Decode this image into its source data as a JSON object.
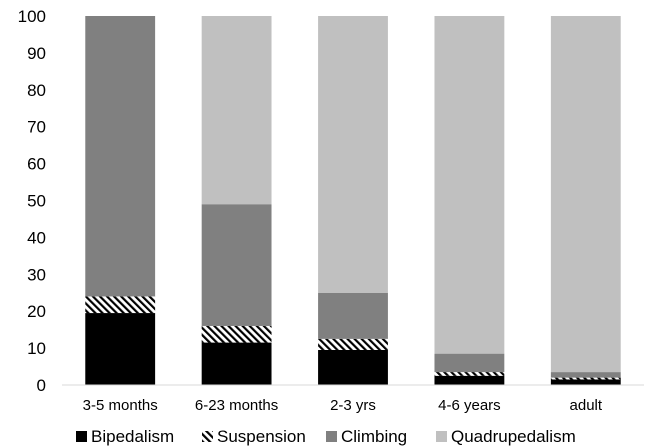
{
  "chart_data": {
    "type": "bar",
    "stacked": true,
    "categories": [
      "3-5 months",
      "6-23 months",
      "2-3 yrs",
      "4-6 years",
      "adult"
    ],
    "series": [
      {
        "name": "Bipedalism",
        "values": [
          19.5,
          11.5,
          9.5,
          2.5,
          1.5
        ],
        "color": "#000000",
        "pattern": "solid"
      },
      {
        "name": "Suspension",
        "values": [
          4.5,
          4.5,
          3.0,
          1.0,
          0.5
        ],
        "color": "#000000",
        "pattern": "diagonal-hatch"
      },
      {
        "name": "Climbing",
        "values": [
          76.0,
          33.0,
          12.5,
          5.0,
          1.5
        ],
        "color": "#808080",
        "pattern": "solid"
      },
      {
        "name": "Quadrupedalism",
        "values": [
          0.0,
          51.0,
          75.0,
          91.5,
          96.5
        ],
        "color": "#c0c0c0",
        "pattern": "solid"
      }
    ],
    "title": "",
    "xlabel": "",
    "ylabel": "",
    "ylim": [
      0,
      100
    ],
    "yticks": [
      "0",
      "10",
      "20",
      "30",
      "40",
      "50",
      "60",
      "70",
      "80",
      "90",
      "100"
    ],
    "grid": false,
    "legend_position": "bottom"
  }
}
